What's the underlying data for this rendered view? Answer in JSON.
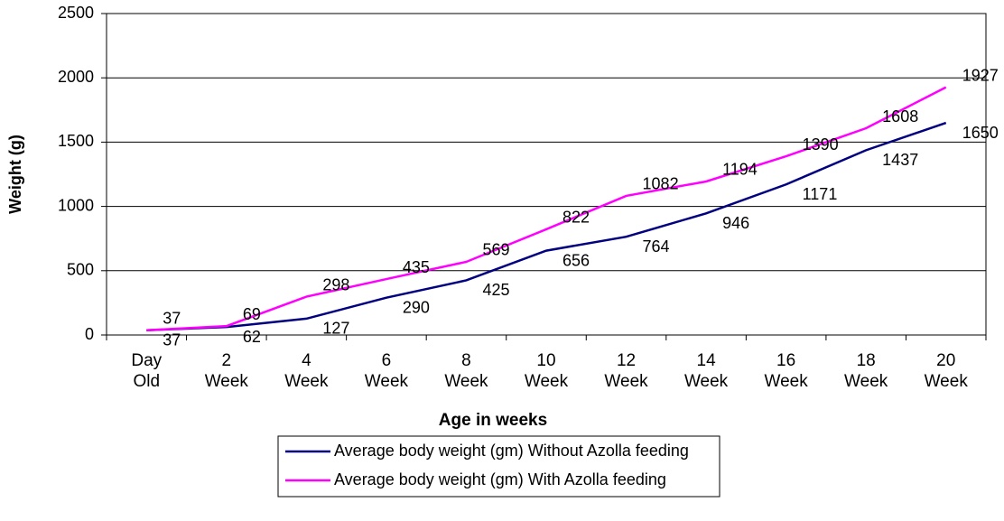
{
  "chart_data": {
    "type": "line",
    "xlabel": "Age in weeks",
    "ylabel": "Weight (g)",
    "categories": [
      "Day Old",
      "2 Week",
      "4 Week",
      "6 Week",
      "8 Week",
      "10 Week",
      "12 Week",
      "14 Week",
      "16 Week",
      "18 Week",
      "20 Week"
    ],
    "series": [
      {
        "name": "Average body weight (gm) Without Azolla feeding",
        "color": "#000080",
        "values": [
          37,
          62,
          127,
          290,
          425,
          656,
          764,
          946,
          1171,
          1437,
          1650
        ]
      },
      {
        "name": "Average body weight (gm) With Azolla feeding",
        "color": "#ff00ff",
        "values": [
          37,
          69,
          298,
          435,
          569,
          822,
          1082,
          1194,
          1390,
          1608,
          1927
        ]
      }
    ],
    "ylim": [
      0,
      2500
    ],
    "yticks": [
      0,
      500,
      1000,
      1500,
      2000,
      2500
    ],
    "grid": true
  }
}
